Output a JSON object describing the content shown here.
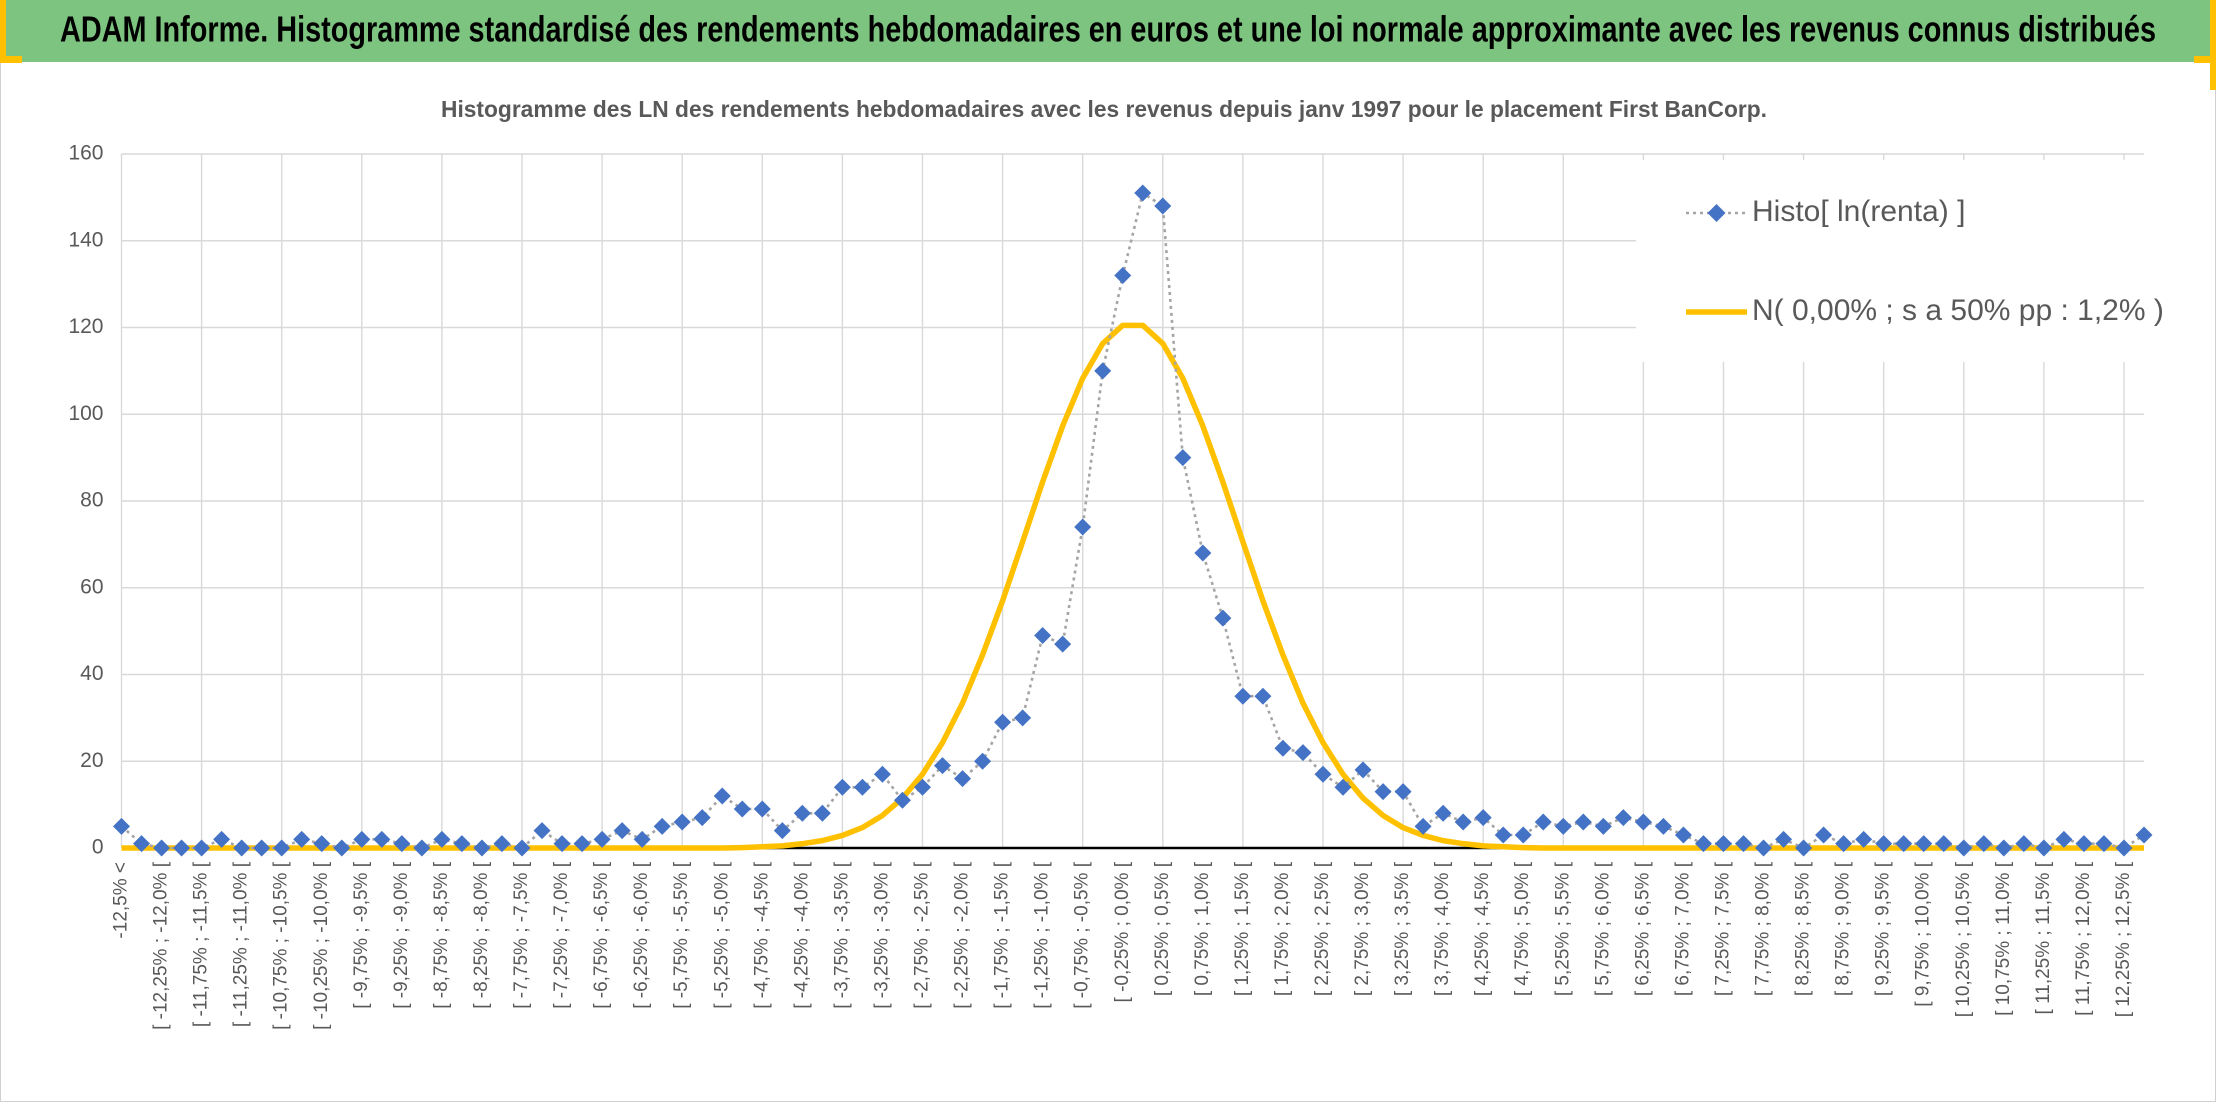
{
  "banner": "ADAM Informe. Histogramme standardisé des rendements hebdomadaires en euros et une loi normale approximante avec les revenus connus distribués",
  "chart_data": {
    "type": "line",
    "title": "Histogramme des LN des rendements hebdomadaires avec les revenus depuis janv 1997 pour le placement First BanCorp.",
    "categories": [
      "-12,5% <",
      null,
      "[ -12,25% ; -12,0% [",
      null,
      "[ -11,75% ; -11,5% [",
      null,
      "[ -11,25% ; -11,0% [",
      null,
      "[ -10,75% ; -10,5% [",
      null,
      "[ -10,25% ; -10,0% [",
      null,
      "[ -9,75% ; -9,5% [",
      null,
      "[ -9,25% ; -9,0% [",
      null,
      "[ -8,75% ; -8,5% [",
      null,
      "[ -8,25% ; -8,0% [",
      null,
      "[ -7,75% ; -7,5% [",
      null,
      "[ -7,25% ; -7,0% [",
      null,
      "[ -6,75% ; -6,5% [",
      null,
      "[ -6,25% ; -6,0% [",
      null,
      "[ -5,75% ; -5,5% [",
      null,
      "[ -5,25% ; -5,0% [",
      null,
      "[ -4,75% ; -4,5% [",
      null,
      "[ -4,25% ; -4,0% [",
      null,
      "[ -3,75% ; -3,5% [",
      null,
      "[ -3,25% ; -3,0% [",
      null,
      "[ -2,75% ; -2,5% [",
      null,
      "[ -2,25% ; -2,0% [",
      null,
      "[ -1,75% ; -1,5% [",
      null,
      "[ -1,25% ; -1,0% [",
      null,
      "[ -0,75% ; -0,5% [",
      null,
      "[ -0,25% ; 0,0% [",
      null,
      "[ 0,25% ; 0,5% [",
      null,
      "[ 0,75% ; 1,0% [",
      null,
      "[ 1,25% ; 1,5% [",
      null,
      "[ 1,75% ; 2,0% [",
      null,
      "[ 2,25% ; 2,5% [",
      null,
      "[ 2,75% ; 3,0% [",
      null,
      "[ 3,25% ; 3,5% [",
      null,
      "[ 3,75% ; 4,0% [",
      null,
      "[ 4,25% ; 4,5% [",
      null,
      "[ 4,75% ; 5,0% [",
      null,
      "[ 5,25% ; 5,5% [",
      null,
      "[ 5,75% ; 6,0% [",
      null,
      "[ 6,25% ; 6,5% [",
      null,
      "[ 6,75% ; 7,0% [",
      null,
      "[ 7,25% ; 7,5% [",
      null,
      "[ 7,75% ; 8,0% [",
      null,
      "[ 8,25% ; 8,5% [",
      null,
      "[ 8,75% ; 9,0% [",
      null,
      "[ 9,25% ; 9,5% [",
      null,
      "[ 9,75% ; 10,0% [",
      null,
      "[ 10,25% ; 10,5% [",
      null,
      "[ 10,75% ; 11,0% [",
      null,
      "[ 11,25% ; 11,5% [",
      null,
      "[ 11,75% ; 12,0% [",
      null,
      "[ 12,25% ; 12,5% [",
      null
    ],
    "series": [
      {
        "name": "Histo[ ln(renta) ]",
        "color": "#4472c4",
        "line_color": "#a5a5a5",
        "marker": "diamond",
        "line_style": "dotted",
        "values": [
          5,
          1,
          0,
          0,
          0,
          2,
          0,
          0,
          0,
          2,
          1,
          0,
          2,
          2,
          1,
          0,
          2,
          1,
          0,
          1,
          0,
          4,
          1,
          1,
          2,
          4,
          2,
          5,
          6,
          7,
          12,
          9,
          9,
          4,
          8,
          8,
          14,
          14,
          17,
          11,
          14,
          19,
          16,
          20,
          29,
          30,
          49,
          47,
          74,
          110,
          132,
          151,
          148,
          90,
          68,
          53,
          35,
          35,
          23,
          22,
          17,
          14,
          18,
          13,
          13,
          5,
          8,
          6,
          7,
          3,
          3,
          6,
          5,
          6,
          5,
          7,
          6,
          5,
          3,
          1,
          1,
          1,
          0,
          2,
          0,
          3,
          1,
          2,
          1,
          1,
          1,
          1,
          0,
          1,
          0,
          1,
          0,
          2,
          1,
          1,
          0,
          3
        ]
      },
      {
        "name": "N( 0,00% ; s a 50% pp : 1,2% )",
        "color": "#ffc000",
        "line_style": "solid",
        "values": [
          0,
          0,
          0,
          0,
          0,
          0,
          0,
          0,
          0,
          0,
          0,
          0,
          0,
          0,
          0,
          0,
          0,
          0,
          0,
          0,
          0,
          0,
          0,
          0,
          0,
          0,
          0,
          0,
          0,
          0,
          0,
          0.1,
          0.3,
          0.5,
          1.0,
          1.7,
          2.9,
          4.7,
          7.5,
          11.5,
          17.0,
          24.3,
          33.4,
          44.5,
          57.0,
          70.6,
          84.4,
          97.3,
          108.3,
          116.3,
          120.5,
          120.5,
          116.3,
          108.3,
          97.3,
          84.4,
          70.6,
          57.0,
          44.5,
          33.4,
          24.3,
          17.0,
          11.5,
          7.5,
          4.7,
          2.9,
          1.7,
          1.0,
          0.5,
          0.3,
          0.1,
          0,
          0,
          0,
          0,
          0,
          0,
          0,
          0,
          0,
          0,
          0,
          0,
          0,
          0,
          0,
          0,
          0,
          0,
          0,
          0,
          0,
          0,
          0,
          0,
          0,
          0,
          0,
          0,
          0,
          0,
          0
        ]
      }
    ],
    "ylim": [
      0,
      160
    ],
    "yticks": [
      0,
      20,
      40,
      60,
      80,
      100,
      120,
      140,
      160
    ],
    "grid": true,
    "legend": "top-right"
  }
}
